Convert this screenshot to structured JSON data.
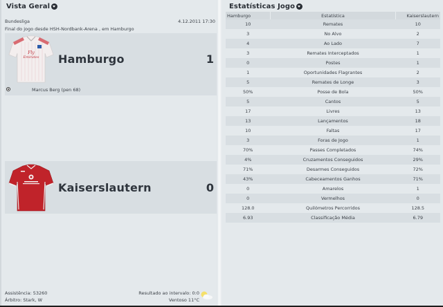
{
  "overview": {
    "title": "Vista Geral",
    "competition": "Bundesliga",
    "datetime": "4.12.2011 17:30",
    "venue_line": "Final do jogo desde HSH-Nordbank-Arena , em Hamburgo",
    "home": {
      "name": "Hamburgo",
      "score": "1",
      "jersey_color": "#f3eeee",
      "jersey_accent": "#d24a52",
      "goals": [
        {
          "icon": "ball-icon",
          "text": "Marcus Berg (pen 68)"
        }
      ]
    },
    "away": {
      "name": "Kaiserslautern",
      "score": "0",
      "jersey_color": "#c0232a",
      "jersey_accent": "#f0f0f0"
    },
    "footer": {
      "attendance": "Assistência: 53260",
      "referee": "Árbitro: Stark, W",
      "halftime": "Resultado ao intervalo: 0:0",
      "weather": "Ventoso 11°C",
      "weather_icon": "partly-cloudy-icon"
    }
  },
  "stats": {
    "title": "Estatísticas Jogo",
    "headers": {
      "home": "Hamburgo",
      "stat": "Estatística",
      "away": "Kaiserslautern"
    },
    "rows": [
      {
        "home": "10",
        "stat": "Remates",
        "away": "10"
      },
      {
        "home": "3",
        "stat": "No Alvo",
        "away": "2"
      },
      {
        "home": "4",
        "stat": "Ao Lado",
        "away": "7"
      },
      {
        "home": "3",
        "stat": "Remates Interceptados",
        "away": "1"
      },
      {
        "home": "0",
        "stat": "Postes",
        "away": "1"
      },
      {
        "home": "1",
        "stat": "Oportunidades Flagrantes",
        "away": "2"
      },
      {
        "home": "5",
        "stat": "Remates de Longe",
        "away": "3"
      },
      {
        "home": "50%",
        "stat": "Posse de Bola",
        "away": "50%"
      },
      {
        "home": "5",
        "stat": "Cantos",
        "away": "5"
      },
      {
        "home": "17",
        "stat": "Livres",
        "away": "13"
      },
      {
        "home": "13",
        "stat": "Lançamentos",
        "away": "18"
      },
      {
        "home": "10",
        "stat": "Faltas",
        "away": "17"
      },
      {
        "home": "3",
        "stat": "Foras de Jogo",
        "away": "1"
      },
      {
        "home": "70%",
        "stat": "Passes Completados",
        "away": "74%"
      },
      {
        "home": "4%",
        "stat": "Cruzamentos Conseguidos",
        "away": "29%"
      },
      {
        "home": "71%",
        "stat": "Desarmes Conseguidos",
        "away": "72%"
      },
      {
        "home": "43%",
        "stat": "Cabeceamentos Ganhos",
        "away": "71%"
      },
      {
        "home": "0",
        "stat": "Amarelos",
        "away": "1"
      },
      {
        "home": "0",
        "stat": "Vermelhos",
        "away": "0"
      },
      {
        "home": "128.0",
        "stat": "Quilómetros Percorridos",
        "away": "128.5"
      },
      {
        "home": "6.93",
        "stat": "Classificação Média",
        "away": "6.79"
      }
    ]
  }
}
